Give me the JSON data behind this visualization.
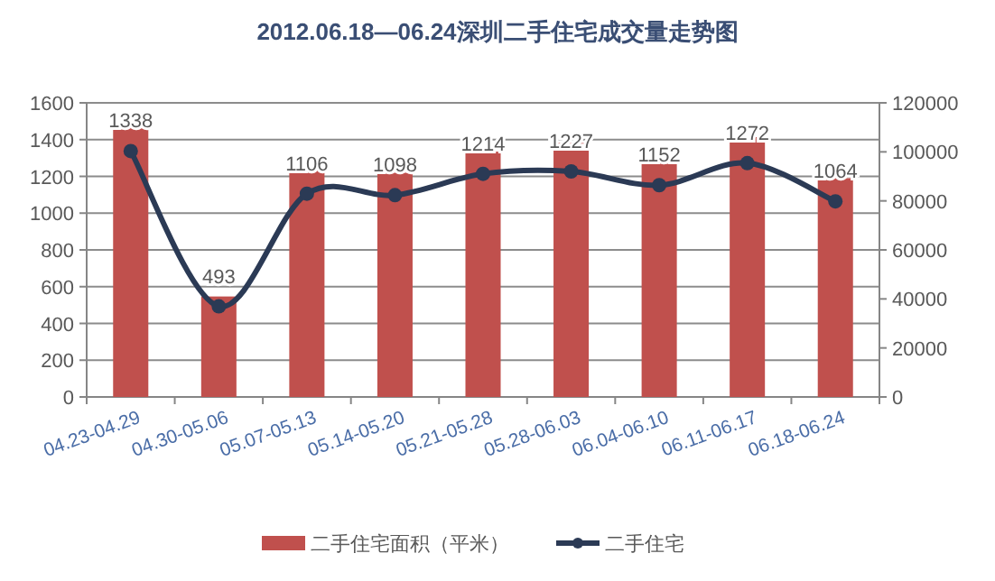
{
  "chart_data": {
    "type": "bar",
    "title": "2012.06.18—06.24深圳二手住宅成交量走势图",
    "categories": [
      "04.23-04.29",
      "04.30-05.06",
      "05.07-05.13",
      "05.14-05.20",
      "05.21-05.28",
      "05.28-06.03",
      "06.04-06.10",
      "06.11-06.17",
      "06.18-06.24"
    ],
    "series": [
      {
        "name": "二手住宅面积（平米）",
        "axis": "y2",
        "color": "#c0504d",
        "values": [
          111000,
          41000,
          92700,
          91500,
          100100,
          103600,
          96900,
          106000,
          89300
        ]
      },
      {
        "name": "二手住宅",
        "type": "line",
        "axis": "y",
        "color": "#2b3a55",
        "marker": "circle",
        "data_labels": true,
        "values": [
          1338,
          493,
          1106,
          1098,
          1214,
          1227,
          1152,
          1272,
          1064
        ]
      }
    ],
    "ylim": [
      0,
      1600
    ],
    "yticks": [
      0,
      200,
      400,
      600,
      800,
      1000,
      1200,
      1400,
      1600
    ],
    "y2lim": [
      0,
      120000
    ],
    "y2ticks": [
      0,
      20000,
      40000,
      60000,
      80000,
      100000,
      120000
    ],
    "grid": "y",
    "legend": "bottom"
  }
}
